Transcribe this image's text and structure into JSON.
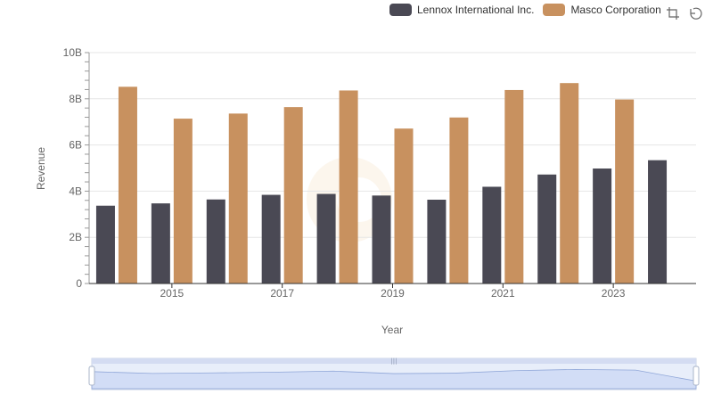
{
  "legend": {
    "items": [
      {
        "label": "Lennox International Inc.",
        "color": "#4a4954"
      },
      {
        "label": "Masco Corporation",
        "color": "#c8915f"
      }
    ]
  },
  "toolbox": {
    "icons": [
      "zoom-icon",
      "restore-icon"
    ]
  },
  "chart_data": {
    "type": "bar",
    "x": [
      2014,
      2015,
      2016,
      2017,
      2018,
      2019,
      2020,
      2021,
      2022,
      2023,
      2024
    ],
    "x_tick_labels": [
      "2015",
      "2017",
      "2019",
      "2021",
      "2023"
    ],
    "y_tick_labels": [
      "0",
      "2B",
      "4B",
      "6B",
      "8B",
      "10B"
    ],
    "ylim": [
      0,
      10000000000
    ],
    "xlabel": "Year",
    "ylabel": "Revenue",
    "grid": true,
    "legend_position": "top-right",
    "series": [
      {
        "name": "Lennox International Inc.",
        "color": "#4a4954",
        "values": [
          3370000000,
          3470000000,
          3640000000,
          3840000000,
          3880000000,
          3810000000,
          3630000000,
          4190000000,
          4720000000,
          4980000000,
          5340000000
        ]
      },
      {
        "name": "Masco Corporation",
        "color": "#c8915f",
        "values": [
          8520000000,
          7140000000,
          7360000000,
          7640000000,
          8360000000,
          6710000000,
          7190000000,
          8380000000,
          8680000000,
          7970000000,
          null
        ]
      }
    ]
  }
}
